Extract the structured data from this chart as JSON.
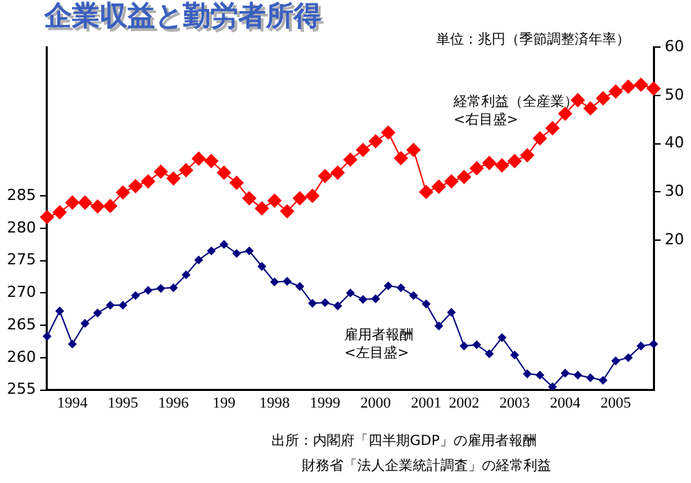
{
  "chart_data": {
    "type": "line",
    "title": "企業収益と勤労者所得",
    "annotations": [
      "単位：兆円（季節調整済年率）",
      "出所：内閣府「四半期GDP」の雇用者報酬",
      "財務省「法人企業統計調査」の経常利益"
    ],
    "categories": [
      null,
      null,
      "1994",
      null,
      null,
      null,
      "1995",
      null,
      null,
      null,
      "1996",
      null,
      null,
      null,
      "199",
      null,
      null,
      null,
      "1998",
      null,
      null,
      null,
      "1999",
      null,
      null,
      null,
      "2000",
      null,
      null,
      null,
      "2001",
      null,
      null,
      "2002",
      null,
      null,
      null,
      "2003",
      null,
      null,
      null,
      "2004",
      null,
      null,
      null,
      "2005",
      null,
      null,
      null
    ],
    "series": [
      {
        "name": "経常利益（全産業）\n<右目盛>",
        "color": "#ff0000",
        "axis": "y2",
        "marker": "diamond",
        "values": [
          24.8,
          25.8,
          27.8,
          27.8,
          27.0,
          27.1,
          29.9,
          31.2,
          32.2,
          34.2,
          32.8,
          34.5,
          36.9,
          36.4,
          34.0,
          31.9,
          28.7,
          26.6,
          28.2,
          26.0,
          28.7,
          29.2,
          33.3,
          34.0,
          36.7,
          38.7,
          40.5,
          42.3,
          37.0,
          38.7,
          30.0,
          31.1,
          32.2,
          33.1,
          34.9,
          36.0,
          35.5,
          36.4,
          37.6,
          41.1,
          43.2,
          46.2,
          49.0,
          47.3,
          49.4,
          50.8,
          51.8,
          52.2,
          51.4
        ]
      },
      {
        "name": "雇用者報酬\n<左目盛>",
        "color": "#000080",
        "marker": "diamond",
        "values": [
          263.3,
          267.2,
          262.1,
          265.3,
          266.9,
          268.1,
          268.1,
          269.6,
          270.4,
          270.7,
          270.8,
          272.8,
          275.1,
          276.5,
          277.5,
          276.1,
          276.5,
          274.1,
          271.7,
          271.8,
          271.0,
          268.4,
          268.5,
          268.0,
          270.0,
          269.0,
          269.1,
          271.1,
          270.8,
          269.6,
          268.3,
          264.9,
          267.0,
          261.8,
          262.0,
          260.6,
          263.1,
          260.4,
          257.5,
          257.3,
          255.5,
          257.6,
          257.3,
          256.9,
          256.5,
          259.5,
          260.0,
          261.8,
          262.1
        ]
      }
    ],
    "ylim": [
      255,
      308
    ],
    "yticks": [
      255,
      260,
      265,
      270,
      275,
      280,
      285
    ],
    "y2lim": [
      -11,
      60
    ],
    "y2ticks": [
      20,
      30,
      40,
      50,
      60
    ],
    "grid": false,
    "legend": false
  }
}
